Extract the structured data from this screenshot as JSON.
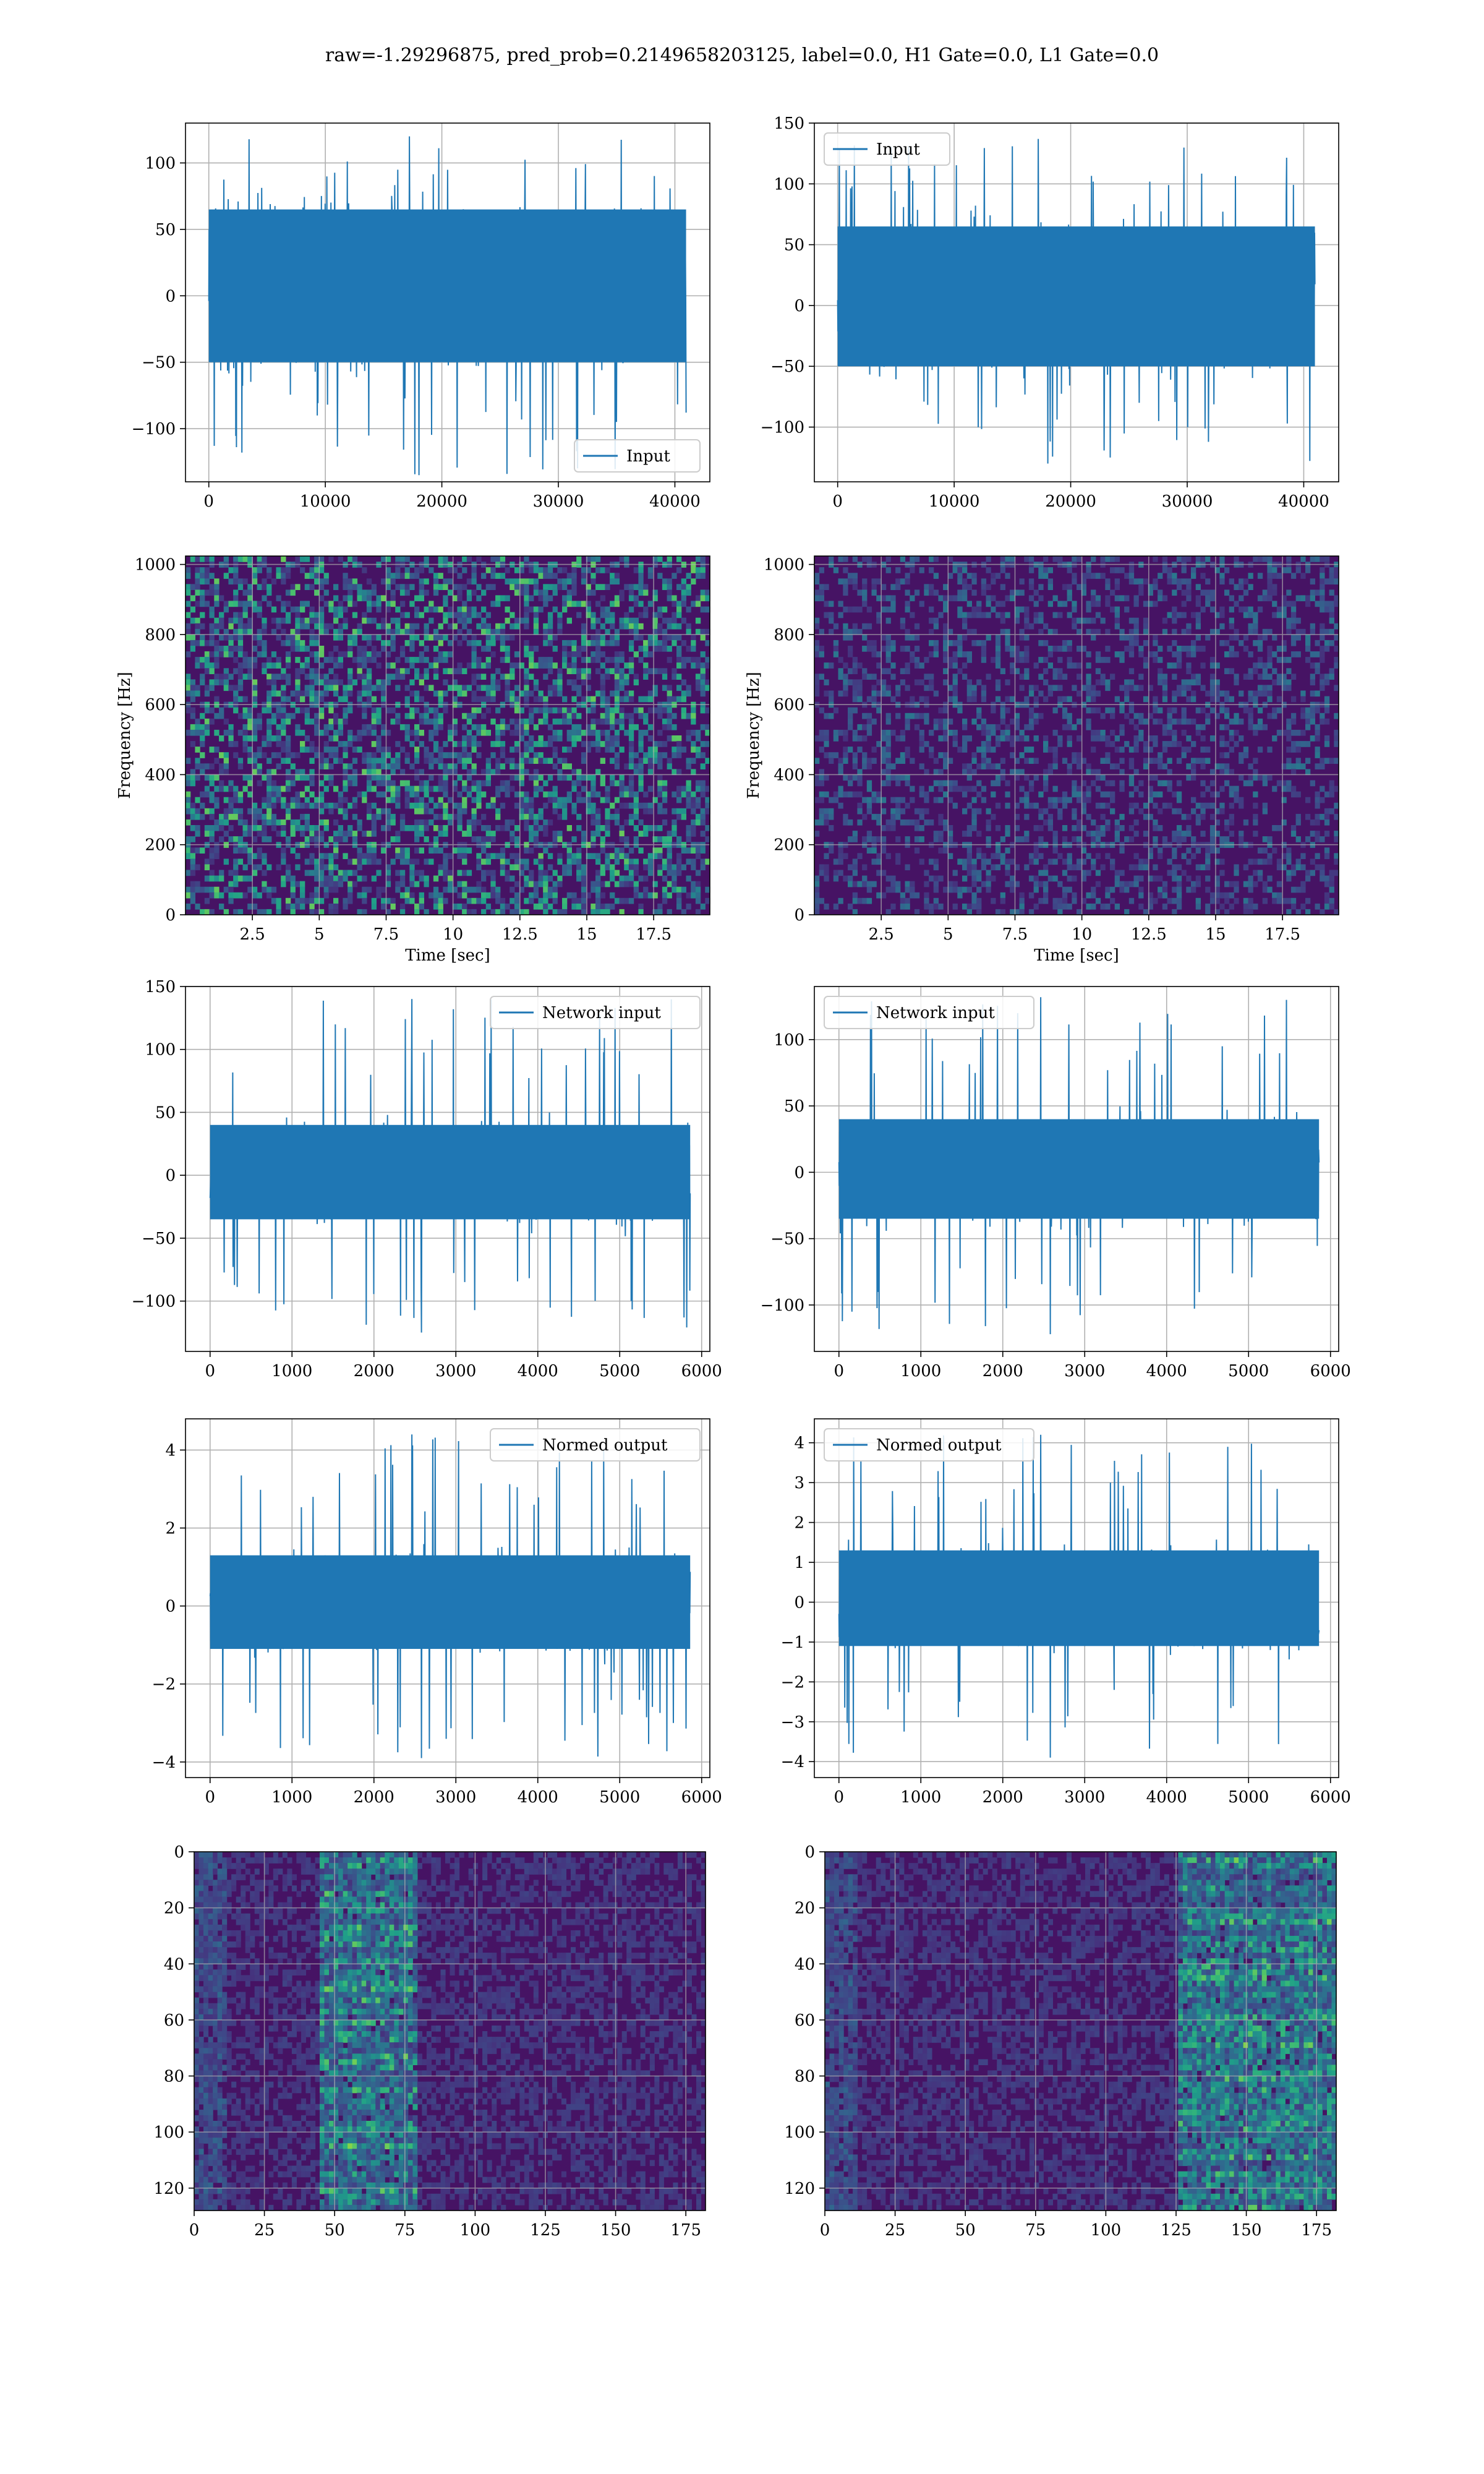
{
  "suptitle": "raw=-1.29296875, pred_prob=0.2149658203125, label=0.0, H1 Gate=0.0, L1 Gate=0.0",
  "colors": {
    "line": "#1f77b4",
    "grid": "#b0b0b0",
    "viridis_low": "#440154",
    "viridis_mid": "#21918c",
    "viridis_high": "#fde725"
  },
  "chart_data": [
    {
      "id": "input-h1",
      "type": "line",
      "legend": "Input",
      "legend_loc": "lower-right",
      "xlim": [
        -2000,
        43000
      ],
      "ylim": [
        -140,
        130
      ],
      "xticks": [
        0,
        10000,
        20000,
        30000,
        40000
      ],
      "yticks": [
        -100,
        -50,
        0,
        50,
        100
      ],
      "series": [
        {
          "name": "Input",
          "x_range": [
            0,
            40960
          ],
          "band": [
            -50,
            65
          ],
          "peak_max": 120,
          "peak_min": -135
        }
      ]
    },
    {
      "id": "input-l1",
      "type": "line",
      "legend": "Input",
      "legend_loc": "upper-left",
      "xlim": [
        -2000,
        43000
      ],
      "ylim": [
        -145,
        150
      ],
      "xticks": [
        0,
        10000,
        20000,
        30000,
        40000
      ],
      "yticks": [
        -100,
        -50,
        0,
        50,
        100,
        150
      ],
      "series": [
        {
          "name": "Input",
          "x_range": [
            0,
            40960
          ],
          "band": [
            -50,
            65
          ],
          "peak_max": 137,
          "peak_min": -130
        }
      ]
    },
    {
      "id": "spec-h1",
      "type": "heatmap",
      "xlabel": "Time [sec]",
      "ylabel": "Frequency [Hz]",
      "xlim": [
        0,
        19.6
      ],
      "ylim": [
        0,
        1024
      ],
      "xticks": [
        2.5,
        5.0,
        7.5,
        10.0,
        12.5,
        15.0,
        17.5
      ],
      "yticks": [
        0,
        200,
        400,
        600,
        800,
        1000
      ],
      "intensity": 0.45
    },
    {
      "id": "spec-l1",
      "type": "heatmap",
      "xlabel": "Time [sec]",
      "ylabel": "Frequency [Hz]",
      "xlim": [
        0,
        19.6
      ],
      "ylim": [
        0,
        1024
      ],
      "xticks": [
        2.5,
        5.0,
        7.5,
        10.0,
        12.5,
        15.0,
        17.5
      ],
      "yticks": [
        0,
        200,
        400,
        600,
        800,
        1000
      ],
      "intensity": 0.22
    },
    {
      "id": "net-h1",
      "type": "line",
      "legend": "Network input",
      "legend_loc": "upper-right",
      "xlim": [
        -300,
        6100
      ],
      "ylim": [
        -140,
        150
      ],
      "xticks": [
        0,
        1000,
        2000,
        3000,
        4000,
        5000,
        6000
      ],
      "yticks": [
        -100,
        -50,
        0,
        50,
        100,
        150
      ],
      "series": [
        {
          "name": "Network input",
          "x_range": [
            0,
            5860
          ],
          "band": [
            -35,
            40
          ],
          "peak_max": 140,
          "peak_min": -125
        }
      ]
    },
    {
      "id": "net-l1",
      "type": "line",
      "legend": "Network input",
      "legend_loc": "upper-left",
      "xlim": [
        -300,
        6100
      ],
      "ylim": [
        -135,
        140
      ],
      "xticks": [
        0,
        1000,
        2000,
        3000,
        4000,
        5000,
        6000
      ],
      "yticks": [
        -100,
        -50,
        0,
        50,
        100
      ],
      "series": [
        {
          "name": "Network input",
          "x_range": [
            0,
            5860
          ],
          "band": [
            -35,
            40
          ],
          "peak_max": 132,
          "peak_min": -122
        }
      ]
    },
    {
      "id": "norm-h1",
      "type": "line",
      "legend": "Normed output",
      "legend_loc": "upper-right",
      "xlim": [
        -300,
        6100
      ],
      "ylim": [
        -4.4,
        4.8
      ],
      "xticks": [
        0,
        1000,
        2000,
        3000,
        4000,
        5000,
        6000
      ],
      "yticks": [
        -4,
        -2,
        0,
        2,
        4
      ],
      "series": [
        {
          "name": "Normed output",
          "x_range": [
            0,
            5860
          ],
          "band": [
            -1.1,
            1.3
          ],
          "peak_max": 4.4,
          "peak_min": -3.9
        }
      ]
    },
    {
      "id": "norm-l1",
      "type": "line",
      "legend": "Normed output",
      "legend_loc": "upper-left",
      "xlim": [
        -300,
        6100
      ],
      "ylim": [
        -4.4,
        4.6
      ],
      "xticks": [
        0,
        1000,
        2000,
        3000,
        4000,
        5000,
        6000
      ],
      "yticks": [
        -4,
        -3,
        -2,
        -1,
        0,
        1,
        2,
        3,
        4
      ],
      "series": [
        {
          "name": "Normed output",
          "x_range": [
            0,
            5860
          ],
          "band": [
            -1.1,
            1.3
          ],
          "peak_max": 4.2,
          "peak_min": -3.9
        }
      ]
    },
    {
      "id": "feat-h1",
      "type": "heatmap",
      "xlim": [
        0,
        182
      ],
      "ylim": [
        0,
        128
      ],
      "y_inverted": true,
      "xticks": [
        0,
        25,
        50,
        75,
        100,
        125,
        150,
        175
      ],
      "yticks": [
        0,
        20,
        40,
        60,
        80,
        100,
        120
      ],
      "hot_columns": [
        45,
        80
      ]
    },
    {
      "id": "feat-l1",
      "type": "heatmap",
      "xlim": [
        0,
        182
      ],
      "ylim": [
        0,
        128
      ],
      "y_inverted": true,
      "xticks": [
        0,
        25,
        50,
        75,
        100,
        125,
        150,
        175
      ],
      "yticks": [
        0,
        20,
        40,
        60,
        80,
        100,
        120
      ],
      "hot_columns": [
        125,
        182
      ]
    }
  ]
}
